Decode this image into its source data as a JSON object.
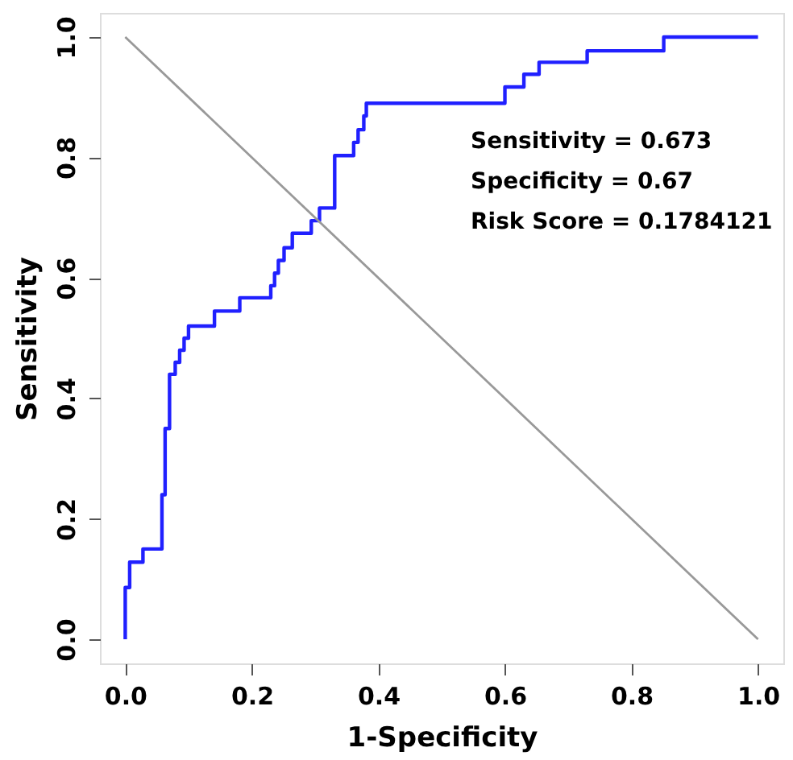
{
  "chart_data": {
    "type": "line",
    "xlabel": "1-Specificity",
    "ylabel": "Sensitivity",
    "xlim": [
      -0.04,
      1.04
    ],
    "ylim": [
      -0.04,
      1.04
    ],
    "xticks": [
      "0.0",
      0.2,
      0.4,
      0.6,
      0.8,
      "1.0"
    ],
    "yticks": [
      "0.0",
      0.2,
      0.4,
      0.6,
      0.8,
      "1.0"
    ],
    "grid": false,
    "marker": "none",
    "line_style": "solid",
    "series": [
      {
        "color": "#2020ff",
        "x": [
          0,
          0,
          0.007,
          0.007,
          0.028,
          0.028,
          0.058,
          0.058,
          0.063,
          0.063,
          0.07,
          0.07,
          0.079,
          0.079,
          0.086,
          0.086,
          0.093,
          0.093,
          0.1,
          0.1,
          0.141,
          0.141,
          0.181,
          0.181,
          0.23,
          0.23,
          0.236,
          0.236,
          0.242,
          0.242,
          0.251,
          0.251,
          0.264,
          0.264,
          0.294,
          0.294,
          0.307,
          0.307,
          0.331,
          0.331,
          0.361,
          0.361,
          0.368,
          0.368,
          0.377,
          0.377,
          0.381,
          0.381,
          0.6,
          0.6,
          0.63,
          0.63,
          0.654,
          0.654,
          0.73,
          0.73,
          0.851,
          0.851,
          1.0
        ],
        "values": [
          0,
          0.086,
          0.086,
          0.128,
          0.128,
          0.15,
          0.15,
          0.24,
          0.24,
          0.35,
          0.35,
          0.44,
          0.44,
          0.46,
          0.46,
          0.48,
          0.48,
          0.5,
          0.5,
          0.52,
          0.52,
          0.545,
          0.545,
          0.567,
          0.567,
          0.587,
          0.587,
          0.608,
          0.608,
          0.629,
          0.629,
          0.65,
          0.65,
          0.674,
          0.674,
          0.695,
          0.695,
          0.716,
          0.716,
          0.803,
          0.803,
          0.825,
          0.825,
          0.846,
          0.846,
          0.869,
          0.869,
          0.89,
          0.89,
          0.917,
          0.917,
          0.938,
          0.938,
          0.958,
          0.958,
          0.977,
          0.977,
          1.0,
          1.0
        ]
      },
      {
        "color": "#999999",
        "x": [
          0,
          1
        ],
        "values": [
          1,
          0
        ]
      }
    ],
    "annotations": [
      "Sensitivity = 0.673",
      "Specificity = 0.67",
      "Risk Score = 0.1784121"
    ]
  }
}
